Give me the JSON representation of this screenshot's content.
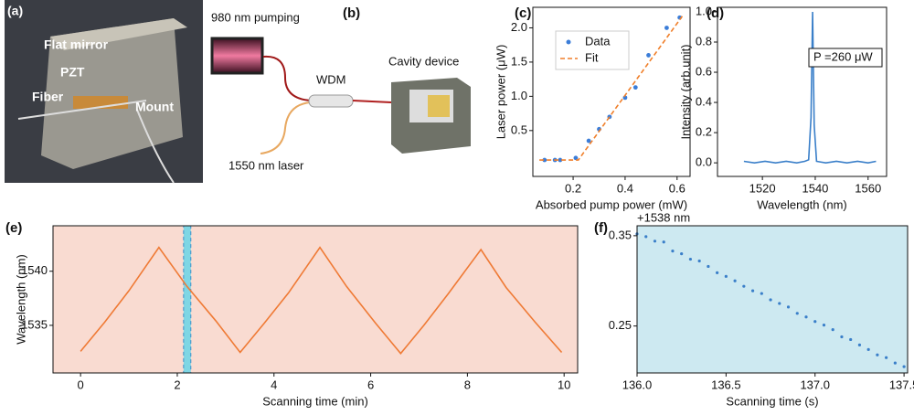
{
  "photo": {
    "panel": "(a)",
    "labels": [
      "Flat mirror",
      "PZT",
      "Fiber",
      "Mount"
    ]
  },
  "diagram": {
    "panel": "(b)",
    "labels": [
      "980 nm pumping",
      "WDM",
      "Cavity device",
      "1550 nm laser"
    ]
  },
  "chart_data": [
    {
      "type": "scatter",
      "panel": "(c)",
      "xlabel": "Absorbed pump power (mW)",
      "ylabel": "Laser power (μW)",
      "xlim": [
        0.045,
        0.65
      ],
      "ylim": [
        -0.17,
        2.3
      ],
      "xticks": [
        0.2,
        0.4,
        0.6
      ],
      "yticks": [
        0.5,
        {
          "value": 1.0,
          "label": "1.0"
        },
        1.5,
        {
          "value": 2.0,
          "label": "2.0"
        }
      ],
      "legend": "upper left",
      "series": [
        {
          "name": "Data",
          "type": "scatter",
          "color": "#3b7dd8",
          "x": [
            0.09,
            0.13,
            0.15,
            0.21,
            0.26,
            0.3,
            0.34,
            0.4,
            0.44,
            0.49,
            0.56,
            0.61
          ],
          "values": [
            0.07,
            0.07,
            0.07,
            0.1,
            0.35,
            0.52,
            0.7,
            0.98,
            1.13,
            1.6,
            2.0,
            2.15
          ]
        },
        {
          "name": "Fit",
          "type": "line",
          "dashed": true,
          "color": "#f07f2a",
          "x": [
            0.07,
            0.22,
            0.62
          ],
          "values": [
            0.07,
            0.07,
            2.17
          ]
        }
      ]
    },
    {
      "type": "line",
      "panel": "(d)",
      "xlabel": "Wavelength (nm)",
      "ylabel": "Intensity (arb.unit)",
      "annotation": "P =260 μW",
      "xlim": [
        1503,
        1567
      ],
      "ylim": [
        -0.09,
        1.03
      ],
      "xticks": [
        1520,
        1540,
        1560
      ],
      "yticks": [
        {
          "value": 0,
          "label": "0.0"
        },
        0.2,
        0.4,
        0.6,
        0.8,
        {
          "value": 1,
          "label": "1.0"
        }
      ],
      "series": [
        {
          "type": "line",
          "color": "#3a7fc9",
          "x": [
            1513,
            1517,
            1521,
            1525,
            1529,
            1533,
            1536,
            1537.5,
            1538.4,
            1539,
            1539.6,
            1540.5,
            1544,
            1548,
            1552,
            1556,
            1560,
            1563
          ],
          "values": [
            0.01,
            0,
            0.01,
            0,
            0.01,
            0,
            0.01,
            0.02,
            0.3,
            1.0,
            0.25,
            0.01,
            0,
            0.01,
            0,
            0.01,
            0,
            0.01
          ]
        }
      ]
    },
    {
      "type": "line",
      "panel": "(e)",
      "xlabel": "Scanning time (min)",
      "ylabel": "Wavelength (nm)",
      "background": "#f9dbd1",
      "highlight": [
        2.13,
        2.28
      ],
      "highlight_color": "#7fd6e4",
      "xlim": [
        -0.57,
        10.28
      ],
      "ylim": [
        1530.6,
        1544.2
      ],
      "xticks": [
        0,
        2,
        4,
        6,
        8,
        10
      ],
      "yticks": [
        1535,
        1540
      ],
      "series": [
        {
          "type": "line",
          "color": "#ef7a35",
          "x": [
            0,
            0.5,
            1.0,
            1.62,
            2.2,
            2.8,
            3.3,
            3.8,
            4.3,
            4.95,
            5.5,
            6.1,
            6.62,
            7.1,
            7.6,
            8.28,
            8.8,
            9.4,
            9.95
          ],
          "values": [
            1532.6,
            1535.3,
            1538.2,
            1542.2,
            1538.6,
            1535.4,
            1532.5,
            1535.2,
            1538.0,
            1542.2,
            1538.6,
            1535.2,
            1532.4,
            1535.0,
            1537.9,
            1542.0,
            1538.5,
            1535.3,
            1532.5
          ]
        }
      ]
    },
    {
      "type": "scatter",
      "panel": "(f)",
      "xlabel": "Scanning time (s)",
      "y_offset_label": "+1538 nm",
      "background": "#cde9f1",
      "xlim": [
        136.0,
        137.52
      ],
      "ylim": [
        0.198,
        0.361
      ],
      "xticks": [
        {
          "value": 136,
          "label": "136.0"
        },
        136.5,
        {
          "value": 137,
          "label": "137.0"
        },
        137.5
      ],
      "yticks": [
        0.25,
        0.35
      ],
      "series": [
        {
          "type": "scatter",
          "color": "#3a7fc9",
          "x": [
            136.0,
            136.05,
            136.1,
            136.15,
            136.2,
            136.25,
            136.3,
            136.35,
            136.4,
            136.45,
            136.5,
            136.55,
            136.6,
            136.65,
            136.7,
            136.75,
            136.8,
            136.85,
            136.9,
            136.95,
            137.0,
            137.05,
            137.1,
            137.15,
            137.2,
            137.25,
            137.3,
            137.35,
            137.4,
            137.45,
            137.5
          ],
          "values": [
            0.352,
            0.349,
            0.344,
            0.343,
            0.333,
            0.33,
            0.324,
            0.322,
            0.316,
            0.309,
            0.305,
            0.3,
            0.294,
            0.289,
            0.286,
            0.279,
            0.275,
            0.271,
            0.264,
            0.26,
            0.255,
            0.251,
            0.246,
            0.238,
            0.235,
            0.229,
            0.224,
            0.218,
            0.215,
            0.209,
            0.205
          ]
        }
      ]
    }
  ]
}
